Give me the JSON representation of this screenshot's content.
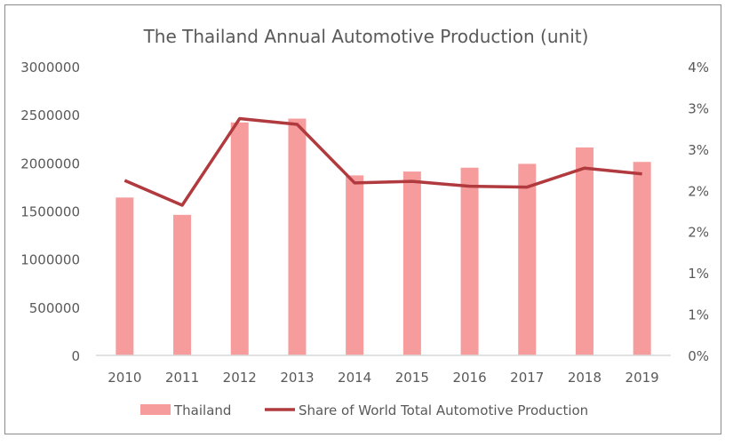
{
  "chart_data": {
    "type": "bar+line",
    "title": "The Thailand Annual Automotive Production (unit)",
    "categories": [
      "2010",
      "2011",
      "2012",
      "2013",
      "2014",
      "2015",
      "2016",
      "2017",
      "2018",
      "2019"
    ],
    "series": [
      {
        "name": "Thailand",
        "type": "bar",
        "axis": "left",
        "color": "#f79c9c",
        "values": [
          1640000,
          1460000,
          2420000,
          2460000,
          1870000,
          1910000,
          1950000,
          1990000,
          2160000,
          2010000
        ]
      },
      {
        "name": "Share of World Total Automotive Production",
        "type": "line",
        "axis": "right",
        "color": "#b03a3e",
        "values": [
          2.12,
          1.82,
          2.87,
          2.8,
          2.09,
          2.11,
          2.05,
          2.04,
          2.27,
          2.2
        ]
      }
    ],
    "left_axis": {
      "min": 0,
      "max": 3000000,
      "ticks": [
        "0",
        "500000",
        "1000000",
        "1500000",
        "2000000",
        "2500000",
        "3000000"
      ]
    },
    "right_axis": {
      "min": 0,
      "max": 3.5,
      "unit": "%",
      "ticks": [
        "0%",
        "1%",
        "1%",
        "2%",
        "2%",
        "3%",
        "3%",
        "4%"
      ]
    },
    "grid": false,
    "legend": "bottom"
  }
}
